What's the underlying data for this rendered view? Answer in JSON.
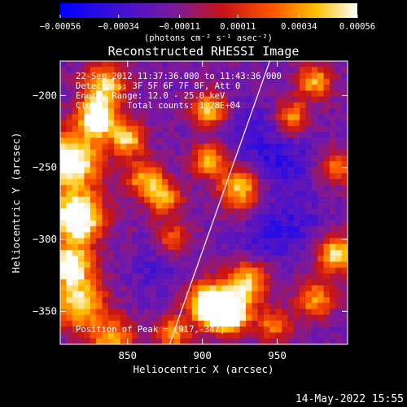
{
  "chart_data": {
    "type": "heatmap",
    "title": "Reconstructed RHESSI Image",
    "xlabel": "Heliocentric X (arcsec)",
    "ylabel": "Heliocentric Y (arcsec)",
    "xlim": [
      805,
      997
    ],
    "ylim": [
      -373,
      -176
    ],
    "x_ticks": [
      850,
      900,
      950
    ],
    "y_ticks": [
      -200,
      -250,
      -300,
      -350
    ],
    "x_tick_labels": [
      "850",
      "900",
      "950"
    ],
    "y_tick_labels": [
      "−200",
      "−250",
      "−300",
      "−350"
    ],
    "colorbar": {
      "range": [
        -0.00056,
        0.00056
      ],
      "ticks": [
        -0.00056,
        -0.00034,
        -0.00011,
        0.00011,
        0.00034,
        0.00056
      ],
      "tick_labels": [
        "−0.00056",
        "−0.00034",
        "−0.00011",
        "0.00011",
        "0.00034",
        "0.00056"
      ],
      "units_label": "(photons cm⁻² s⁻¹ asec⁻²)",
      "colormap": "blue-purple-red-yellow-white"
    },
    "limb_line": {
      "x": [
        878,
        945
      ],
      "y": [
        -373,
        -176
      ]
    },
    "annotations": [
      "22-Sep-2012 11:37:36.000 to 11:43:36.000",
      "Detectors: 3F 5F 6F 7F 8F, Att 0",
      "Energy Range: 12.0 - 25.0 keV",
      "Clean     Total counts: 1.28E+04"
    ],
    "peak_label": "Position of Peak = [917,-347]",
    "peak": [
      917,
      -347
    ],
    "grid": false
  },
  "footer": {
    "date": "14-May-2022 15:55"
  }
}
